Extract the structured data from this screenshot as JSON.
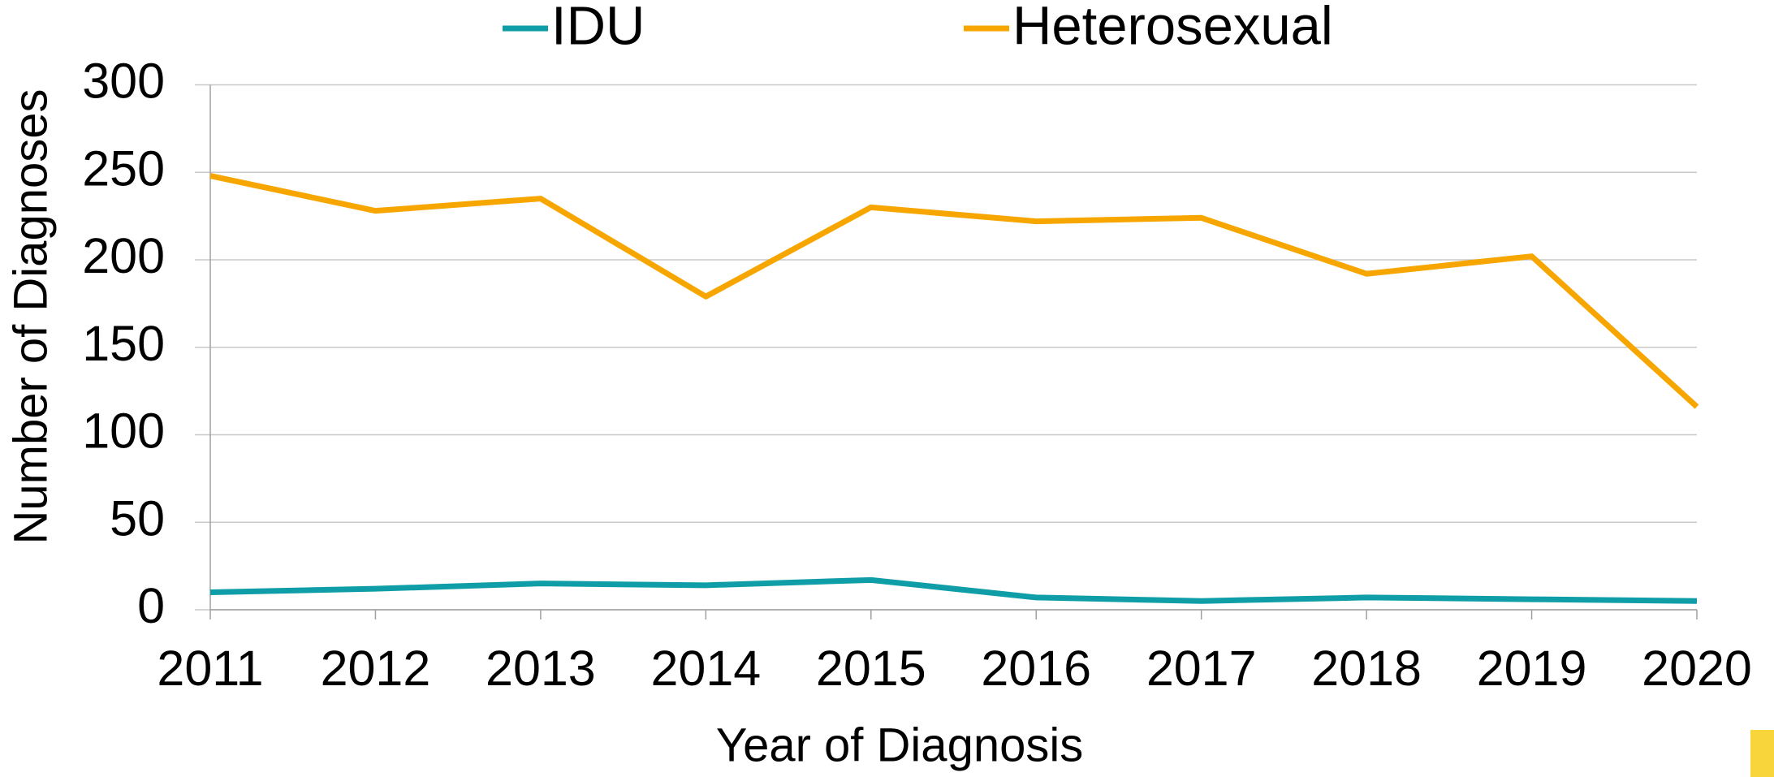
{
  "chart_data": {
    "type": "line",
    "x": [
      2011,
      2012,
      2013,
      2014,
      2015,
      2016,
      2017,
      2018,
      2019,
      2020
    ],
    "xlim": [
      2011,
      2020
    ],
    "xticks": [
      2011,
      2012,
      2013,
      2014,
      2015,
      2016,
      2017,
      2018,
      2019,
      2020
    ],
    "series": [
      {
        "name": "IDU",
        "color": "#0f9ea8",
        "values": [
          10,
          12,
          15,
          14,
          17,
          7,
          5,
          7,
          6,
          5
        ]
      },
      {
        "name": "Heterosexual",
        "color": "#f7a600",
        "values": [
          248,
          228,
          235,
          179,
          230,
          222,
          224,
          192,
          202,
          116
        ]
      }
    ],
    "ylim": [
      0,
      300
    ],
    "yticks": [
      0,
      50,
      100,
      150,
      200,
      250,
      300
    ],
    "xlabel": "Year of Diagnosis",
    "ylabel": "Number of Diagnoses",
    "grid": true,
    "legend": "top"
  }
}
